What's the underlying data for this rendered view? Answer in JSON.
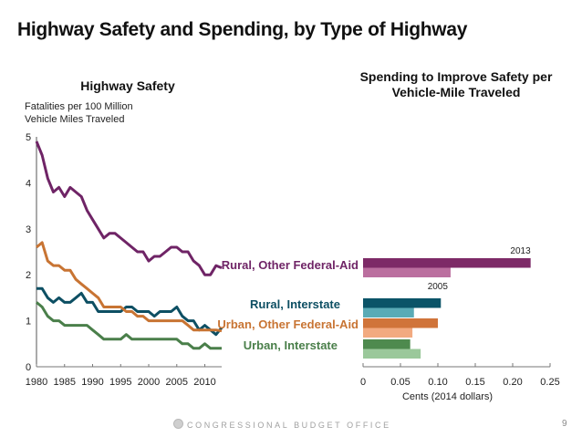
{
  "page": {
    "title": "Highway Safety and Spending, by Type of Highway",
    "footer_org": "CONGRESSIONAL BUDGET OFFICE",
    "page_number": "9",
    "logo_icon": "cbo-seal-icon"
  },
  "chart_data": [
    {
      "type": "line",
      "title": "Highway Safety",
      "ylabel": "Fatalities per 100 Million Vehicle Miles Traveled",
      "xlabel": "",
      "ylim": [
        0,
        5
      ],
      "xlim": [
        1980,
        2013
      ],
      "yticks": [
        "0",
        "1",
        "2",
        "3",
        "4",
        "5"
      ],
      "xticks": [
        "1980",
        "1985",
        "1990",
        "1995",
        "2000",
        "2005",
        "2010"
      ],
      "grid": false,
      "x": [
        1980,
        1981,
        1982,
        1983,
        1984,
        1985,
        1986,
        1987,
        1988,
        1989,
        1990,
        1991,
        1992,
        1993,
        1994,
        1995,
        1996,
        1997,
        1998,
        1999,
        2000,
        2001,
        2002,
        2003,
        2004,
        2005,
        2006,
        2007,
        2008,
        2009,
        2010,
        2011,
        2012,
        2013
      ],
      "series": [
        {
          "name": "Rural, Other Federal-Aid",
          "color": "#6f2466",
          "values": [
            4.9,
            4.6,
            4.1,
            3.8,
            3.9,
            3.7,
            3.9,
            3.8,
            3.7,
            3.4,
            3.2,
            3.0,
            2.8,
            2.9,
            2.9,
            2.8,
            2.7,
            2.6,
            2.5,
            2.5,
            2.3,
            2.4,
            2.4,
            2.5,
            2.6,
            2.6,
            2.5,
            2.5,
            2.3,
            2.2,
            2.0,
            2.0,
            2.2,
            2.15
          ]
        },
        {
          "name": "Rural, Interstate",
          "color": "#0d4f63",
          "values": [
            1.7,
            1.7,
            1.5,
            1.4,
            1.5,
            1.4,
            1.4,
            1.5,
            1.6,
            1.4,
            1.4,
            1.2,
            1.2,
            1.2,
            1.2,
            1.2,
            1.3,
            1.3,
            1.2,
            1.2,
            1.2,
            1.1,
            1.2,
            1.2,
            1.2,
            1.3,
            1.1,
            1.0,
            1.0,
            0.8,
            0.9,
            0.8,
            0.7,
            0.85
          ]
        },
        {
          "name": "Urban, Other Federal-Aid",
          "color": "#c87433",
          "values": [
            2.6,
            2.7,
            2.3,
            2.2,
            2.2,
            2.1,
            2.1,
            1.9,
            1.8,
            1.7,
            1.6,
            1.5,
            1.3,
            1.3,
            1.3,
            1.3,
            1.2,
            1.2,
            1.1,
            1.1,
            1.0,
            1.0,
            1.0,
            1.0,
            1.0,
            1.0,
            1.0,
            0.9,
            0.8,
            0.8,
            0.8,
            0.8,
            0.8,
            0.78
          ]
        },
        {
          "name": "Urban, Interstate",
          "color": "#4a7f4a",
          "values": [
            1.4,
            1.3,
            1.1,
            1.0,
            1.0,
            0.9,
            0.9,
            0.9,
            0.9,
            0.9,
            0.8,
            0.7,
            0.6,
            0.6,
            0.6,
            0.6,
            0.7,
            0.6,
            0.6,
            0.6,
            0.6,
            0.6,
            0.6,
            0.6,
            0.6,
            0.6,
            0.5,
            0.5,
            0.4,
            0.4,
            0.5,
            0.4,
            0.4,
            0.4
          ]
        }
      ]
    },
    {
      "type": "bar",
      "orientation": "horizontal",
      "title": "Spending to Improve Safety per Vehicle-Mile Traveled",
      "xlabel": "Cents (2014 dollars)",
      "ylabel": "",
      "xlim": [
        0,
        0.25
      ],
      "xticks": [
        "0",
        "0.05",
        "0.10",
        "0.15",
        "0.20",
        "0.25"
      ],
      "grid": false,
      "categories": [
        "Rural, Other Federal-Aid",
        "Rural, Interstate",
        "Urban, Other Federal-Aid",
        "Urban, Interstate"
      ],
      "category_colors": [
        "#6f2466",
        "#0d4f63",
        "#c87433",
        "#4a7f4a"
      ],
      "series": [
        {
          "name": "2013",
          "values": [
            0.224,
            0.104,
            0.1,
            0.063
          ],
          "colors": [
            "#7d2a67",
            "#0b5468",
            "#d0743a",
            "#4e8a4e"
          ]
        },
        {
          "name": "2005",
          "values": [
            0.117,
            0.068,
            0.066,
            0.077
          ],
          "colors": [
            "#bb6f9f",
            "#5aabb6",
            "#f2aa80",
            "#9bc89b"
          ]
        }
      ],
      "annotations": [
        {
          "text": "2013",
          "applies_to": "series 2013, Rural, Other Federal-Aid"
        },
        {
          "text": "2005",
          "applies_to": "series 2005, Rural, Other Federal-Aid"
        }
      ]
    }
  ]
}
